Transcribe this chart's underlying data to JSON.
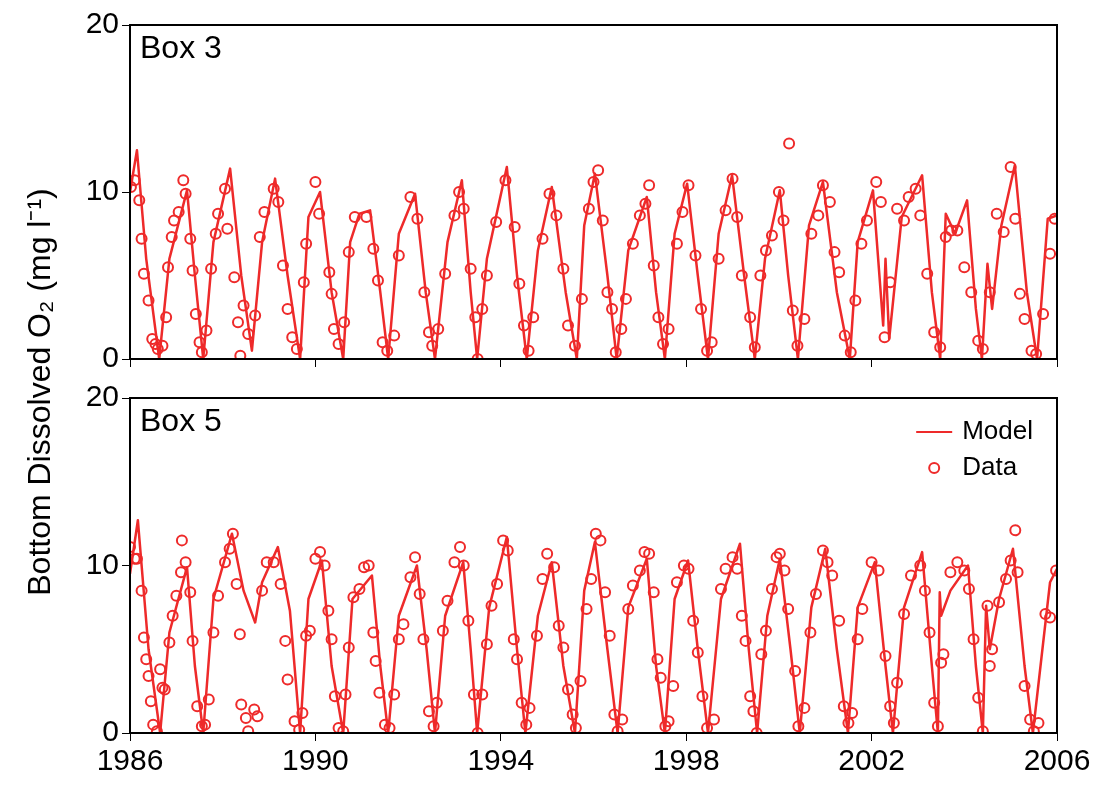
{
  "chart_data": [
    {
      "type": "line",
      "title": "Box 3",
      "ylabel": "Bottom Dissolved O₂ (mg l⁻¹)",
      "xlim": [
        1986,
        2006
      ],
      "xticks": [
        1986,
        1990,
        1994,
        1998,
        2002,
        2006
      ],
      "ylim": [
        0,
        20
      ],
      "yticks": [
        0,
        10,
        20
      ],
      "tick_labels": "y",
      "series": [
        {
          "type": "line",
          "marker": "none",
          "color": "#ee2a2a",
          "x": [
            1986.0,
            1986.15,
            1986.35,
            1986.63,
            1986.85,
            1987.23,
            1987.4,
            1987.58,
            1987.8,
            1988.16,
            1988.4,
            1988.63,
            1988.85,
            1989.13,
            1989.4,
            1989.67,
            1989.85,
            1990.1,
            1990.35,
            1990.6,
            1990.75,
            1990.95,
            1991.18,
            1991.4,
            1991.57,
            1991.8,
            1992.15,
            1992.38,
            1992.58,
            1992.85,
            1993.16,
            1993.35,
            1993.49,
            1993.7,
            1994.13,
            1994.35,
            1994.56,
            1994.8,
            1995.1,
            1995.4,
            1995.64,
            1995.8,
            1996.03,
            1996.3,
            1996.5,
            1996.75,
            1997.15,
            1997.35,
            1997.54,
            1997.75,
            1998.02,
            1998.25,
            1998.47,
            1998.7,
            1998.99,
            1999.25,
            1999.48,
            1999.7,
            2000.02,
            2000.2,
            2000.41,
            2000.65,
            2000.95,
            2001.25,
            2001.53,
            2001.7,
            2002.03,
            2002.25,
            2002.3,
            2002.38,
            2002.65,
            2003.09,
            2003.3,
            2003.48,
            2003.6,
            2003.8,
            2004.06,
            2004.25,
            2004.38,
            2004.5,
            2004.6,
            2004.8,
            2005.09,
            2005.35,
            2005.57,
            2005.8,
            2006.0
          ],
          "values": [
            10,
            12.5,
            6,
            0,
            6,
            10.1,
            5,
            0,
            7,
            11.4,
            5,
            0.5,
            7,
            10.8,
            5,
            0,
            8.5,
            10,
            4,
            0,
            7,
            8.7,
            8.9,
            4,
            0,
            7.5,
            9.9,
            4,
            0,
            7,
            10.7,
            4,
            0,
            6,
            11.5,
            5,
            0,
            6.5,
            10.3,
            4,
            0,
            8,
            11.1,
            5,
            0,
            6.5,
            9.7,
            4,
            0,
            7.5,
            10.5,
            5,
            0,
            7.5,
            11,
            5,
            0,
            6,
            10.1,
            5,
            0,
            8,
            10.6,
            4,
            0,
            7,
            10.1,
            2,
            6,
            1.2,
            8.5,
            11,
            4,
            0,
            8.7,
            7.5,
            9.5,
            3,
            0,
            5.7,
            3,
            8,
            11.6,
            4,
            0,
            8.4,
            8.6
          ]
        },
        {
          "type": "scatter",
          "marker": "circle",
          "color": "#ee2a2a",
          "x": [
            1986.02,
            1986.1,
            1986.2,
            1986.25,
            1986.3,
            1986.4,
            1986.48,
            1986.55,
            1986.6,
            1986.7,
            1986.78,
            1986.82,
            1986.9,
            1986.95,
            1987.05,
            1987.15,
            1987.2,
            1987.3,
            1987.35,
            1987.42,
            1987.5,
            1987.55,
            1987.65,
            1987.75,
            1987.85,
            1987.9,
            1988.05,
            1988.1,
            1988.25,
            1988.33,
            1988.38,
            1988.45,
            1988.55,
            1988.7,
            1988.8,
            1988.9,
            1989.1,
            1989.2,
            1989.3,
            1989.4,
            1989.5,
            1989.6,
            1989.75,
            1989.8,
            1990.0,
            1990.08,
            1990.3,
            1990.35,
            1990.4,
            1990.5,
            1990.62,
            1990.72,
            1990.85,
            1991.1,
            1991.25,
            1991.35,
            1991.45,
            1991.55,
            1991.7,
            1991.8,
            1992.05,
            1992.2,
            1992.35,
            1992.45,
            1992.52,
            1992.65,
            1992.8,
            1993.0,
            1993.1,
            1993.2,
            1993.35,
            1993.45,
            1993.5,
            1993.6,
            1993.7,
            1993.9,
            1994.1,
            1994.3,
            1994.4,
            1994.5,
            1994.6,
            1994.7,
            1994.9,
            1995.05,
            1995.2,
            1995.35,
            1995.45,
            1995.6,
            1995.75,
            1995.9,
            1996.0,
            1996.1,
            1996.2,
            1996.3,
            1996.4,
            1996.48,
            1996.6,
            1996.7,
            1996.85,
            1997.0,
            1997.12,
            1997.2,
            1997.3,
            1997.4,
            1997.5,
            1997.62,
            1997.8,
            1997.92,
            1998.05,
            1998.2,
            1998.32,
            1998.45,
            1998.55,
            1998.7,
            1998.85,
            1999.0,
            1999.1,
            1999.2,
            1999.38,
            1999.48,
            1999.6,
            1999.72,
            1999.85,
            2000.0,
            2000.1,
            2000.22,
            2000.3,
            2000.4,
            2000.55,
            2000.7,
            2000.85,
            2000.95,
            2001.1,
            2001.2,
            2001.3,
            2001.42,
            2001.55,
            2001.65,
            2001.78,
            2001.9,
            2002.1,
            2002.2,
            2002.28,
            2002.4,
            2002.55,
            2002.7,
            2002.8,
            2002.95,
            2003.05,
            2003.2,
            2003.35,
            2003.48,
            2003.6,
            2003.72,
            2003.85,
            2004.0,
            2004.15,
            2004.3,
            2004.4,
            2004.55,
            2004.7,
            2004.85,
            2005.0,
            2005.1,
            2005.2,
            2005.3,
            2005.45,
            2005.55,
            2005.7,
            2005.85,
            2005.95
          ],
          "values": [
            10.3,
            10.7,
            9.5,
            7.2,
            5.1,
            3.5,
            1.2,
            0.9,
            0.6,
            0.8,
            2.5,
            5.5,
            7.3,
            8.3,
            8.8,
            10.7,
            9.9,
            7.2,
            5.3,
            2.7,
            1,
            0.4,
            1.7,
            5.4,
            7.5,
            8.7,
            10.2,
            7.8,
            4.9,
            2.2,
            0.2,
            3.2,
            1.5,
            2.6,
            7.3,
            8.8,
            10.2,
            9.4,
            5.6,
            3.0,
            1.3,
            0.6,
            4.6,
            6.9,
            10.6,
            8.7,
            5.2,
            3.9,
            1.8,
            0.9,
            2.2,
            6.4,
            8.5,
            8.5,
            6.6,
            4.7,
            1.0,
            0.5,
            1.4,
            6.2,
            9.7,
            8.4,
            4.0,
            1.6,
            0.8,
            1.8,
            5.1,
            8.6,
            10.0,
            9.0,
            5.4,
            2.5,
            0.0,
            3.0,
            5.0,
            8.2,
            10.7,
            7.9,
            4.5,
            2.0,
            0.5,
            2.5,
            7.2,
            9.9,
            8.6,
            5.4,
            2.0,
            0.8,
            3.6,
            9.0,
            10.6,
            11.3,
            8.3,
            4.0,
            3.0,
            0.4,
            1.8,
            3.6,
            6.9,
            8.6,
            9.3,
            10.4,
            5.6,
            2.5,
            0.9,
            1.8,
            6.9,
            8.8,
            10.4,
            6.2,
            3.0,
            0.5,
            1.0,
            6.0,
            8.9,
            10.8,
            8.5,
            5.0,
            2.5,
            0.7,
            5.0,
            6.5,
            7.4,
            10.0,
            8.3,
            12.9,
            2.9,
            0.8,
            2.4,
            7.5,
            8.6,
            10.4,
            9.4,
            6.4,
            5.2,
            1.4,
            0.4,
            3.5,
            6.9,
            8.3,
            10.6,
            9.4,
            1.3,
            4.6,
            9.0,
            8.3,
            9.7,
            10.2,
            8.6,
            5.1,
            1.6,
            0.7,
            7.3,
            7.7,
            7.7,
            5.5,
            4.0,
            1.1,
            0.6,
            4.0,
            8.7,
            7.6,
            11.5,
            8.4,
            3.9,
            2.4,
            0.5,
            0.3,
            2.7,
            6.3,
            8.4
          ]
        }
      ]
    },
    {
      "type": "line",
      "title": "Box 5",
      "xlim": [
        1986,
        2006
      ],
      "xticks": [
        1986,
        1990,
        1994,
        1998,
        2002,
        2006
      ],
      "ylim": [
        0,
        20
      ],
      "yticks": [
        0,
        10,
        20
      ],
      "legend": "top right",
      "series": [
        {
          "type": "line",
          "name": "Model",
          "marker": "none",
          "color": "#ee2a2a",
          "x": [
            1986.0,
            1986.17,
            1986.4,
            1986.65,
            1986.85,
            1987.23,
            1987.4,
            1987.58,
            1987.8,
            1988.2,
            1988.45,
            1988.7,
            1988.85,
            1989.19,
            1989.45,
            1989.67,
            1989.85,
            1990.14,
            1990.35,
            1990.6,
            1990.8,
            1991.22,
            1991.4,
            1991.57,
            1991.8,
            1992.19,
            1992.4,
            1992.58,
            1992.8,
            1993.19,
            1993.35,
            1993.49,
            1993.75,
            1994.13,
            1994.35,
            1994.53,
            1994.8,
            1995.1,
            1995.35,
            1995.6,
            1995.8,
            1996.03,
            1996.3,
            1996.52,
            1996.75,
            1997.15,
            1997.35,
            1997.54,
            1997.75,
            1998.04,
            1998.25,
            1998.47,
            1998.75,
            1999.16,
            1999.35,
            1999.53,
            1999.75,
            2000.02,
            2000.25,
            2000.45,
            2000.7,
            2001.0,
            2001.25,
            2001.49,
            2001.7,
            2002.07,
            2002.3,
            2002.46,
            2002.7,
            2003.09,
            2003.3,
            2003.43,
            2003.47,
            2003.5,
            2003.7,
            2004.08,
            2004.25,
            2004.4,
            2004.47,
            2004.55,
            2004.75,
            2005.05,
            2005.3,
            2005.48,
            2005.85,
            2006.0
          ],
          "values": [
            9.5,
            12.7,
            5,
            0,
            6,
            9.9,
            4,
            0,
            8,
            11.9,
            8.5,
            6.6,
            9,
            11.1,
            7.3,
            0,
            8,
            10.3,
            4,
            0,
            8,
            9.4,
            4,
            0,
            7,
            10,
            5,
            0,
            7,
            10.2,
            5,
            0,
            7.5,
            11.7,
            5,
            0,
            7,
            10.2,
            4,
            0,
            8.5,
            11.4,
            5,
            0,
            7.5,
            10.4,
            4,
            0,
            8,
            10.3,
            5,
            0,
            8,
            11.3,
            5,
            0,
            7,
            10.4,
            5,
            0,
            7.5,
            11,
            5,
            0,
            7.5,
            10.2,
            4,
            0,
            7.5,
            10.8,
            4,
            0,
            8.4,
            7,
            8.5,
            10,
            4,
            0,
            7.6,
            5,
            8,
            11,
            4,
            0,
            9,
            9.8
          ]
        },
        {
          "type": "scatter",
          "name": "Data",
          "marker": "circle",
          "color": "#ee2a2a",
          "x": [
            1986.0,
            1986.1,
            1986.15,
            1986.25,
            1986.3,
            1986.35,
            1986.4,
            1986.45,
            1986.5,
            1986.58,
            1986.65,
            1986.7,
            1986.75,
            1986.85,
            1986.92,
            1987.0,
            1987.1,
            1987.12,
            1987.2,
            1987.3,
            1987.35,
            1987.45,
            1987.55,
            1987.62,
            1987.7,
            1987.8,
            1987.9,
            1988.05,
            1988.15,
            1988.22,
            1988.3,
            1988.37,
            1988.4,
            1988.5,
            1988.55,
            1988.68,
            1988.75,
            1988.85,
            1988.95,
            1989.1,
            1989.25,
            1989.35,
            1989.4,
            1989.55,
            1989.65,
            1989.72,
            1989.8,
            1989.88,
            1990.0,
            1990.1,
            1990.2,
            1990.28,
            1990.35,
            1990.42,
            1990.5,
            1990.6,
            1990.65,
            1990.72,
            1990.82,
            1990.95,
            1991.05,
            1991.15,
            1991.25,
            1991.3,
            1991.38,
            1991.5,
            1991.6,
            1991.7,
            1991.8,
            1991.9,
            1992.05,
            1992.15,
            1992.25,
            1992.33,
            1992.45,
            1992.55,
            1992.62,
            1992.75,
            1992.85,
            1993.0,
            1993.12,
            1993.2,
            1993.3,
            1993.42,
            1993.5,
            1993.6,
            1993.7,
            1993.8,
            1993.92,
            1994.05,
            1994.15,
            1994.28,
            1994.35,
            1994.45,
            1994.55,
            1994.62,
            1994.78,
            1994.9,
            1995.0,
            1995.15,
            1995.25,
            1995.35,
            1995.45,
            1995.55,
            1995.62,
            1995.72,
            1995.85,
            1995.95,
            1996.05,
            1996.15,
            1996.25,
            1996.35,
            1996.45,
            1996.52,
            1996.62,
            1996.75,
            1996.85,
            1997.0,
            1997.1,
            1997.2,
            1997.3,
            1997.38,
            1997.45,
            1997.55,
            1997.62,
            1997.72,
            1997.8,
            1997.95,
            1998.05,
            1998.15,
            1998.25,
            1998.35,
            1998.45,
            1998.6,
            1998.75,
            1998.85,
            1999.0,
            1999.1,
            1999.2,
            1999.28,
            1999.38,
            1999.45,
            1999.52,
            1999.62,
            1999.72,
            1999.85,
            1999.95,
            2000.02,
            2000.12,
            2000.2,
            2000.35,
            2000.42,
            2000.55,
            2000.68,
            2000.8,
            2000.95,
            2001.05,
            2001.15,
            2001.3,
            2001.4,
            2001.5,
            2001.58,
            2001.7,
            2001.8,
            2002.0,
            2002.15,
            2002.3,
            2002.4,
            2002.48,
            2002.55,
            2002.7,
            2002.85,
            2003.05,
            2003.15,
            2003.25,
            2003.35,
            2003.43,
            2003.5,
            2003.55,
            2003.7,
            2003.85,
            2004.0,
            2004.1,
            2004.2,
            2004.3,
            2004.4,
            2004.5,
            2004.55,
            2004.6,
            2004.75,
            2004.9,
            2005.0,
            2005.1,
            2005.15,
            2005.3,
            2005.42,
            2005.5,
            2005.6,
            2005.75,
            2005.85,
            2005.98
          ],
          "values": [
            11.1,
            10.4,
            10.4,
            8.5,
            5.7,
            4.4,
            3.4,
            1.9,
            0.5,
            0.1,
            3.8,
            2.7,
            2.6,
            5.4,
            7.0,
            8.2,
            9.6,
            11.5,
            10.2,
            8.4,
            5.5,
            1.6,
            0.4,
            0.5,
            2.0,
            6.0,
            8.2,
            10.2,
            11.0,
            11.9,
            8.9,
            5.9,
            1.7,
            0.9,
            0.1,
            1.4,
            1.0,
            8.5,
            10.2,
            10.2,
            8.9,
            5.5,
            3.2,
            0.7,
            0.2,
            1.2,
            5.8,
            6.1,
            10.4,
            10.8,
            10.0,
            7.3,
            5.6,
            2.2,
            0.3,
            0.1,
            2.3,
            5.1,
            8.1,
            8.6,
            9.9,
            10.0,
            6.0,
            4.3,
            2.4,
            0.5,
            0.3,
            2.3,
            5.6,
            6.5,
            9.3,
            10.5,
            8.3,
            5.6,
            1.3,
            0.4,
            1.8,
            6.1,
            7.9,
            10.2,
            11.1,
            10.0,
            6.7,
            2.3,
            0.0,
            2.3,
            5.3,
            7.6,
            8.9,
            11.5,
            10.9,
            5.6,
            4.4,
            1.8,
            0.5,
            1.5,
            5.8,
            9.2,
            10.7,
            9.9,
            6.4,
            5.1,
            2.6,
            1.1,
            0.3,
            3.1,
            7.4,
            9.2,
            11.9,
            11.5,
            8.4,
            5.8,
            1.1,
            0.1,
            0.8,
            7.4,
            8.8,
            9.7,
            10.8,
            10.7,
            8.4,
            4.4,
            3.3,
            0.4,
            0.7,
            2.8,
            9.0,
            10.0,
            9.8,
            6.7,
            4.8,
            2.2,
            0.3,
            0.8,
            8.6,
            9.8,
            10.5,
            9.8,
            7.0,
            5.5,
            2.2,
            1.3,
            0.0,
            4.7,
            6.1,
            8.6,
            10.5,
            10.7,
            9.7,
            7.4,
            3.7,
            0.4,
            1.5,
            6.0,
            8.3,
            10.9,
            10.2,
            9.4,
            6.7,
            1.6,
            0.6,
            1.2,
            5.6,
            7.4,
            10.2,
            9.7,
            4.6,
            1.6,
            0.6,
            3.0,
            7.1,
            9.4,
            10.0,
            8.5,
            6.0,
            1.8,
            0.4,
            4.2,
            4.7,
            9.6,
            10.2,
            9.7,
            8.6,
            5.6,
            2.1,
            0.1,
            7.6,
            4.0,
            5.0,
            7.8,
            9.2,
            10.3,
            12.1,
            9.6,
            2.8,
            0.8,
            0.1,
            0.6,
            7.1,
            6.9,
            9.7
          ]
        }
      ]
    }
  ]
}
